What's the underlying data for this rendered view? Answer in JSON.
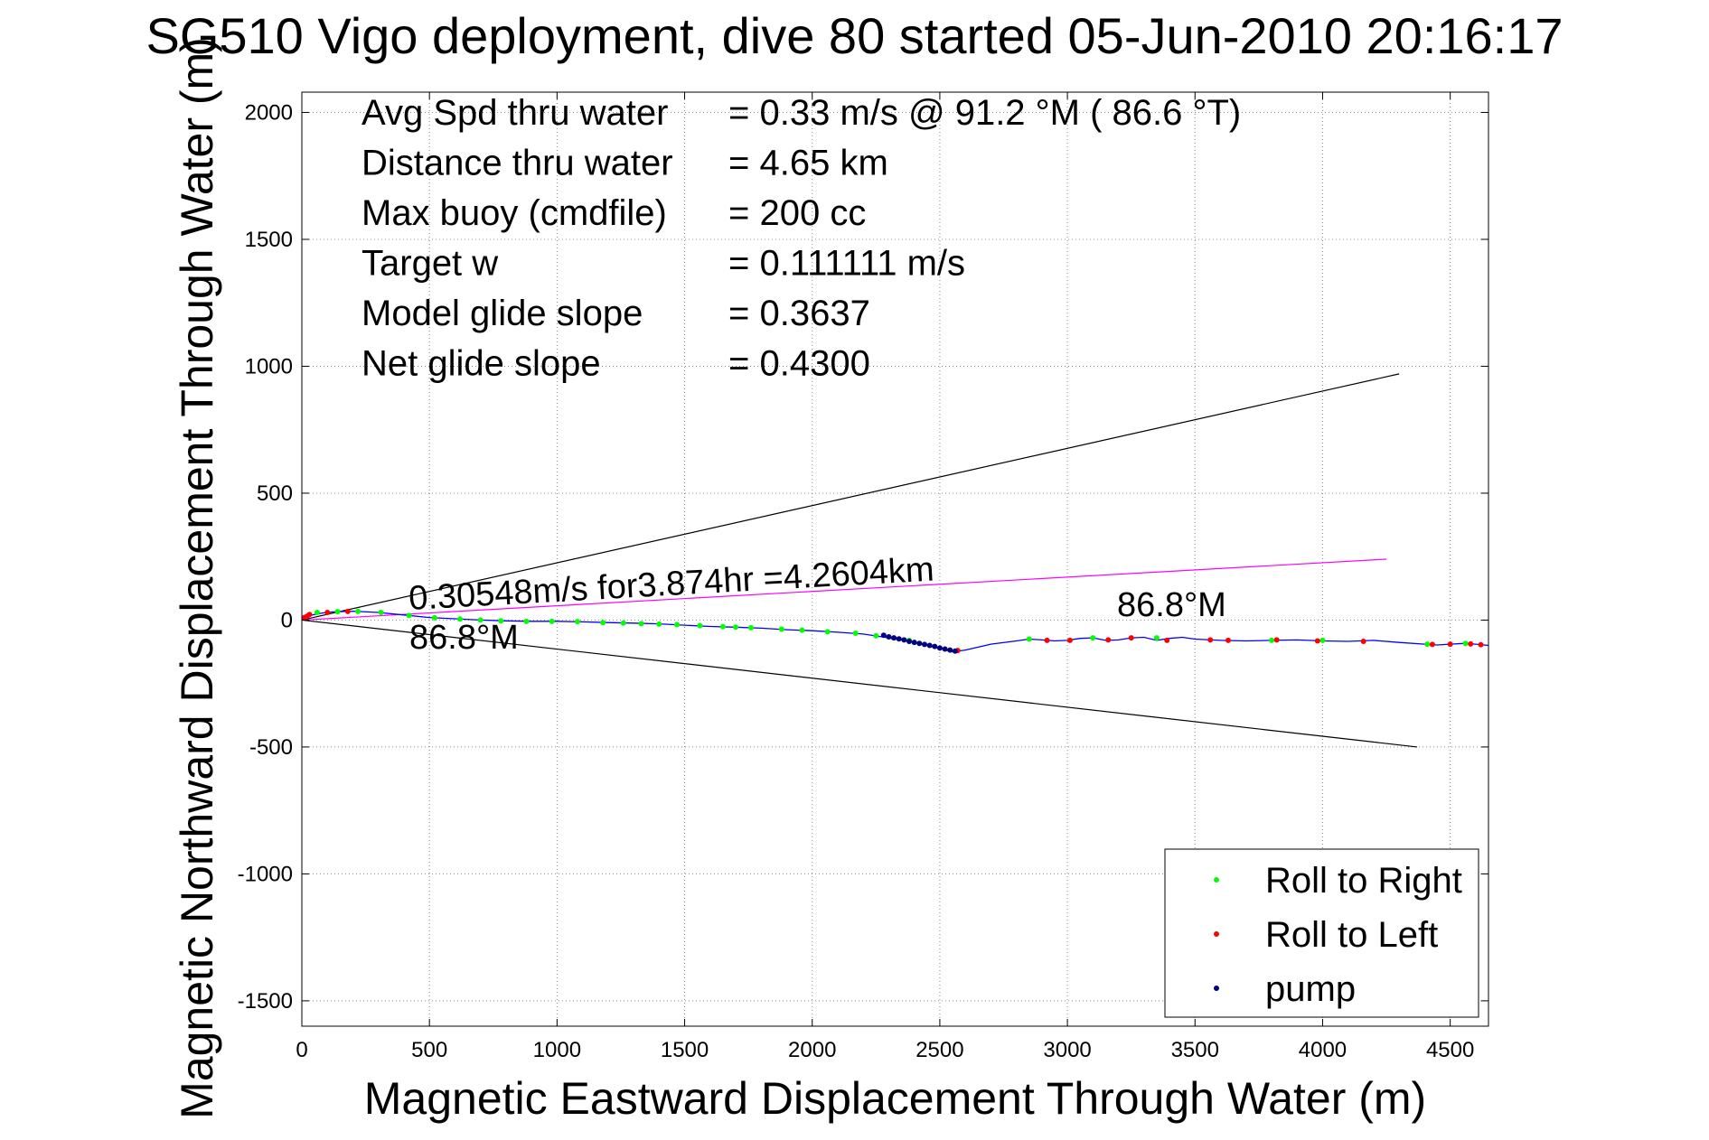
{
  "chart_data": {
    "type": "scatter",
    "title": "SG510 Vigo deployment, dive 80 started 05-Jun-2010 20:16:17",
    "xlabel": "Magnetic Eastward Displacement Through Water (m)",
    "ylabel": "Magnetic Northward Displacement Through Water (m)",
    "xlim": [
      0,
      4650
    ],
    "ylim": [
      -1600,
      2080
    ],
    "xticks": [
      "0",
      "500",
      "1000",
      "1500",
      "2000",
      "2500",
      "3000",
      "3500",
      "4000",
      "4500"
    ],
    "yticks": [
      "-1500",
      "-1000",
      "-500",
      "0",
      "500",
      "1000",
      "1500",
      "2000"
    ],
    "grid": true,
    "info": [
      {
        "label": "Avg Spd thru water",
        "value": "=  0.33 m/s @  91.2 °M ( 86.6 °T)"
      },
      {
        "label": "Distance thru water",
        "value": "=  4.65 km"
      },
      {
        "label": "Max buoy (cmdfile)",
        "value": "= 200 cc"
      },
      {
        "label": "Target w",
        "value": "= 0.111111 m/s"
      },
      {
        "label": "Model glide slope",
        "value": "= 0.3637"
      },
      {
        "label": "Net glide slope",
        "value": "= 0.4300"
      }
    ],
    "annotations": {
      "speed_text": "0.30548m/s for3.874hr =4.2604km",
      "heading_lower": "86.8°M",
      "heading_right": "86.8°M"
    },
    "reference_lines": [
      {
        "name": "upper-bound",
        "color": "#000000",
        "x": [
          0,
          4300
        ],
        "y": [
          0,
          970
        ]
      },
      {
        "name": "lower-bound",
        "color": "#000000",
        "x": [
          0,
          4370
        ],
        "y": [
          0,
          -500
        ]
      },
      {
        "name": "net-track",
        "color": "#ff00ff",
        "x": [
          0,
          4250
        ],
        "y": [
          0,
          240
        ]
      }
    ],
    "track": {
      "name": "glider-track",
      "color": "#0000ff",
      "x": [
        0,
        40,
        80,
        120,
        200,
        300,
        400,
        500,
        600,
        700,
        800,
        900,
        1000,
        1100,
        1200,
        1300,
        1400,
        1500,
        1600,
        1700,
        1800,
        1900,
        2000,
        2100,
        2200,
        2300,
        2400,
        2450,
        2500,
        2550,
        2600,
        2700,
        2800,
        2850,
        2900,
        2950,
        3000,
        3050,
        3100,
        3150,
        3200,
        3250,
        3300,
        3350,
        3400,
        3450,
        3500,
        3600,
        3700,
        3800,
        3900,
        4000,
        4100,
        4200,
        4300,
        4400,
        4450,
        4500,
        4550,
        4600,
        4650
      ],
      "y": [
        0,
        20,
        28,
        32,
        35,
        30,
        20,
        10,
        5,
        0,
        -3,
        -5,
        -5,
        -7,
        -10,
        -12,
        -15,
        -20,
        -25,
        -28,
        -32,
        -38,
        -42,
        -48,
        -55,
        -70,
        -88,
        -100,
        -112,
        -125,
        -118,
        -95,
        -82,
        -75,
        -78,
        -82,
        -80,
        -72,
        -70,
        -80,
        -78,
        -70,
        -68,
        -80,
        -72,
        -68,
        -75,
        -80,
        -82,
        -80,
        -78,
        -82,
        -84,
        -80,
        -88,
        -95,
        -98,
        -95,
        -92,
        -95,
        -100
      ]
    },
    "series": [
      {
        "name": "Roll to Right",
        "color": "#00ff00",
        "marker": "."
      },
      {
        "name": "Roll to Left",
        "color": "#ff0000",
        "marker": "."
      },
      {
        "name": "pump",
        "color": "#000080",
        "marker": "."
      }
    ],
    "markers": {
      "Roll to Right": {
        "x": [
          60,
          140,
          220,
          310,
          420,
          520,
          620,
          700,
          780,
          880,
          980,
          1080,
          1180,
          1260,
          1330,
          1400,
          1470,
          1560,
          1650,
          1700,
          1760,
          1880,
          1960,
          2060,
          2170,
          2250,
          2380,
          2850,
          3100,
          3350,
          3800,
          4000,
          4410,
          4560
        ],
        "y": [
          30,
          33,
          34,
          30,
          18,
          9,
          4,
          0,
          -3,
          -5,
          -5,
          -6,
          -10,
          -12,
          -14,
          -16,
          -18,
          -22,
          -26,
          -28,
          -30,
          -36,
          -40,
          -46,
          -52,
          -62,
          -80,
          -75,
          -70,
          -70,
          -80,
          -80,
          -95,
          -92
        ]
      },
      "Roll to Left": {
        "x": [
          10,
          20,
          30,
          100,
          180,
          2570,
          2920,
          3010,
          3160,
          3250,
          3390,
          3560,
          3630,
          3820,
          3980,
          4160,
          4430,
          4500,
          4580,
          4620
        ],
        "y": [
          10,
          15,
          22,
          30,
          34,
          -120,
          -80,
          -80,
          -78,
          -70,
          -80,
          -78,
          -80,
          -78,
          -82,
          -84,
          -96,
          -95,
          -94,
          -97
        ]
      },
      "pump": {
        "x": [
          2280,
          2300,
          2320,
          2340,
          2360,
          2380,
          2400,
          2420,
          2440,
          2460,
          2480,
          2500,
          2520,
          2540,
          2560
        ],
        "y": [
          -60,
          -66,
          -70,
          -74,
          -78,
          -84,
          -88,
          -92,
          -96,
          -100,
          -104,
          -110,
          -114,
          -118,
          -122
        ]
      }
    },
    "legend": {
      "position": "bottom-right",
      "entries": [
        "Roll to Right",
        "Roll to Left",
        "pump"
      ]
    }
  }
}
